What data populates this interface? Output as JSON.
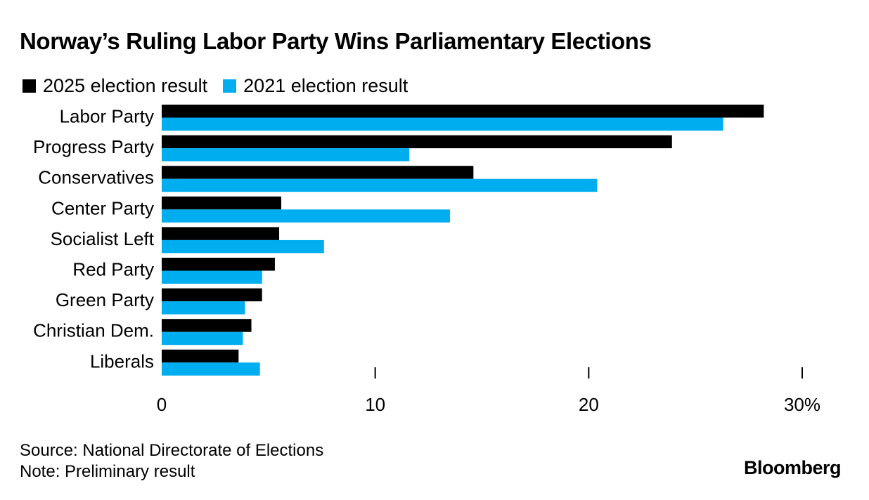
{
  "title": "Norway’s Ruling Labor Party Wins Parliamentary Elections",
  "colors": {
    "s2025": "#000000",
    "s2021": "#00adef",
    "axis": "#000000",
    "text": "#000000"
  },
  "chart_data": {
    "type": "bar",
    "orientation": "horizontal",
    "categories": [
      "Labor Party",
      "Progress Party",
      "Conservatives",
      "Center Party",
      "Socialist Left",
      "Red Party",
      "Green Party",
      "Christian Dem.",
      "Liberals"
    ],
    "series": [
      {
        "name": "2025 election result",
        "values": [
          28.2,
          23.9,
          14.6,
          5.6,
          5.5,
          5.3,
          4.7,
          4.2,
          3.6
        ]
      },
      {
        "name": "2021 election result",
        "values": [
          26.3,
          11.6,
          20.4,
          13.5,
          7.6,
          4.7,
          3.9,
          3.8,
          4.6
        ]
      }
    ],
    "xlim": [
      0,
      30
    ],
    "xticks": [
      0,
      10,
      20,
      30
    ],
    "xtick_labels": [
      "0",
      "10",
      "20",
      "30%"
    ],
    "legend_position": "top-left",
    "grid": false
  },
  "footer": {
    "source": "Source: National Directorate of Elections",
    "note": "Note: Preliminary result",
    "brand": "Bloomberg"
  }
}
